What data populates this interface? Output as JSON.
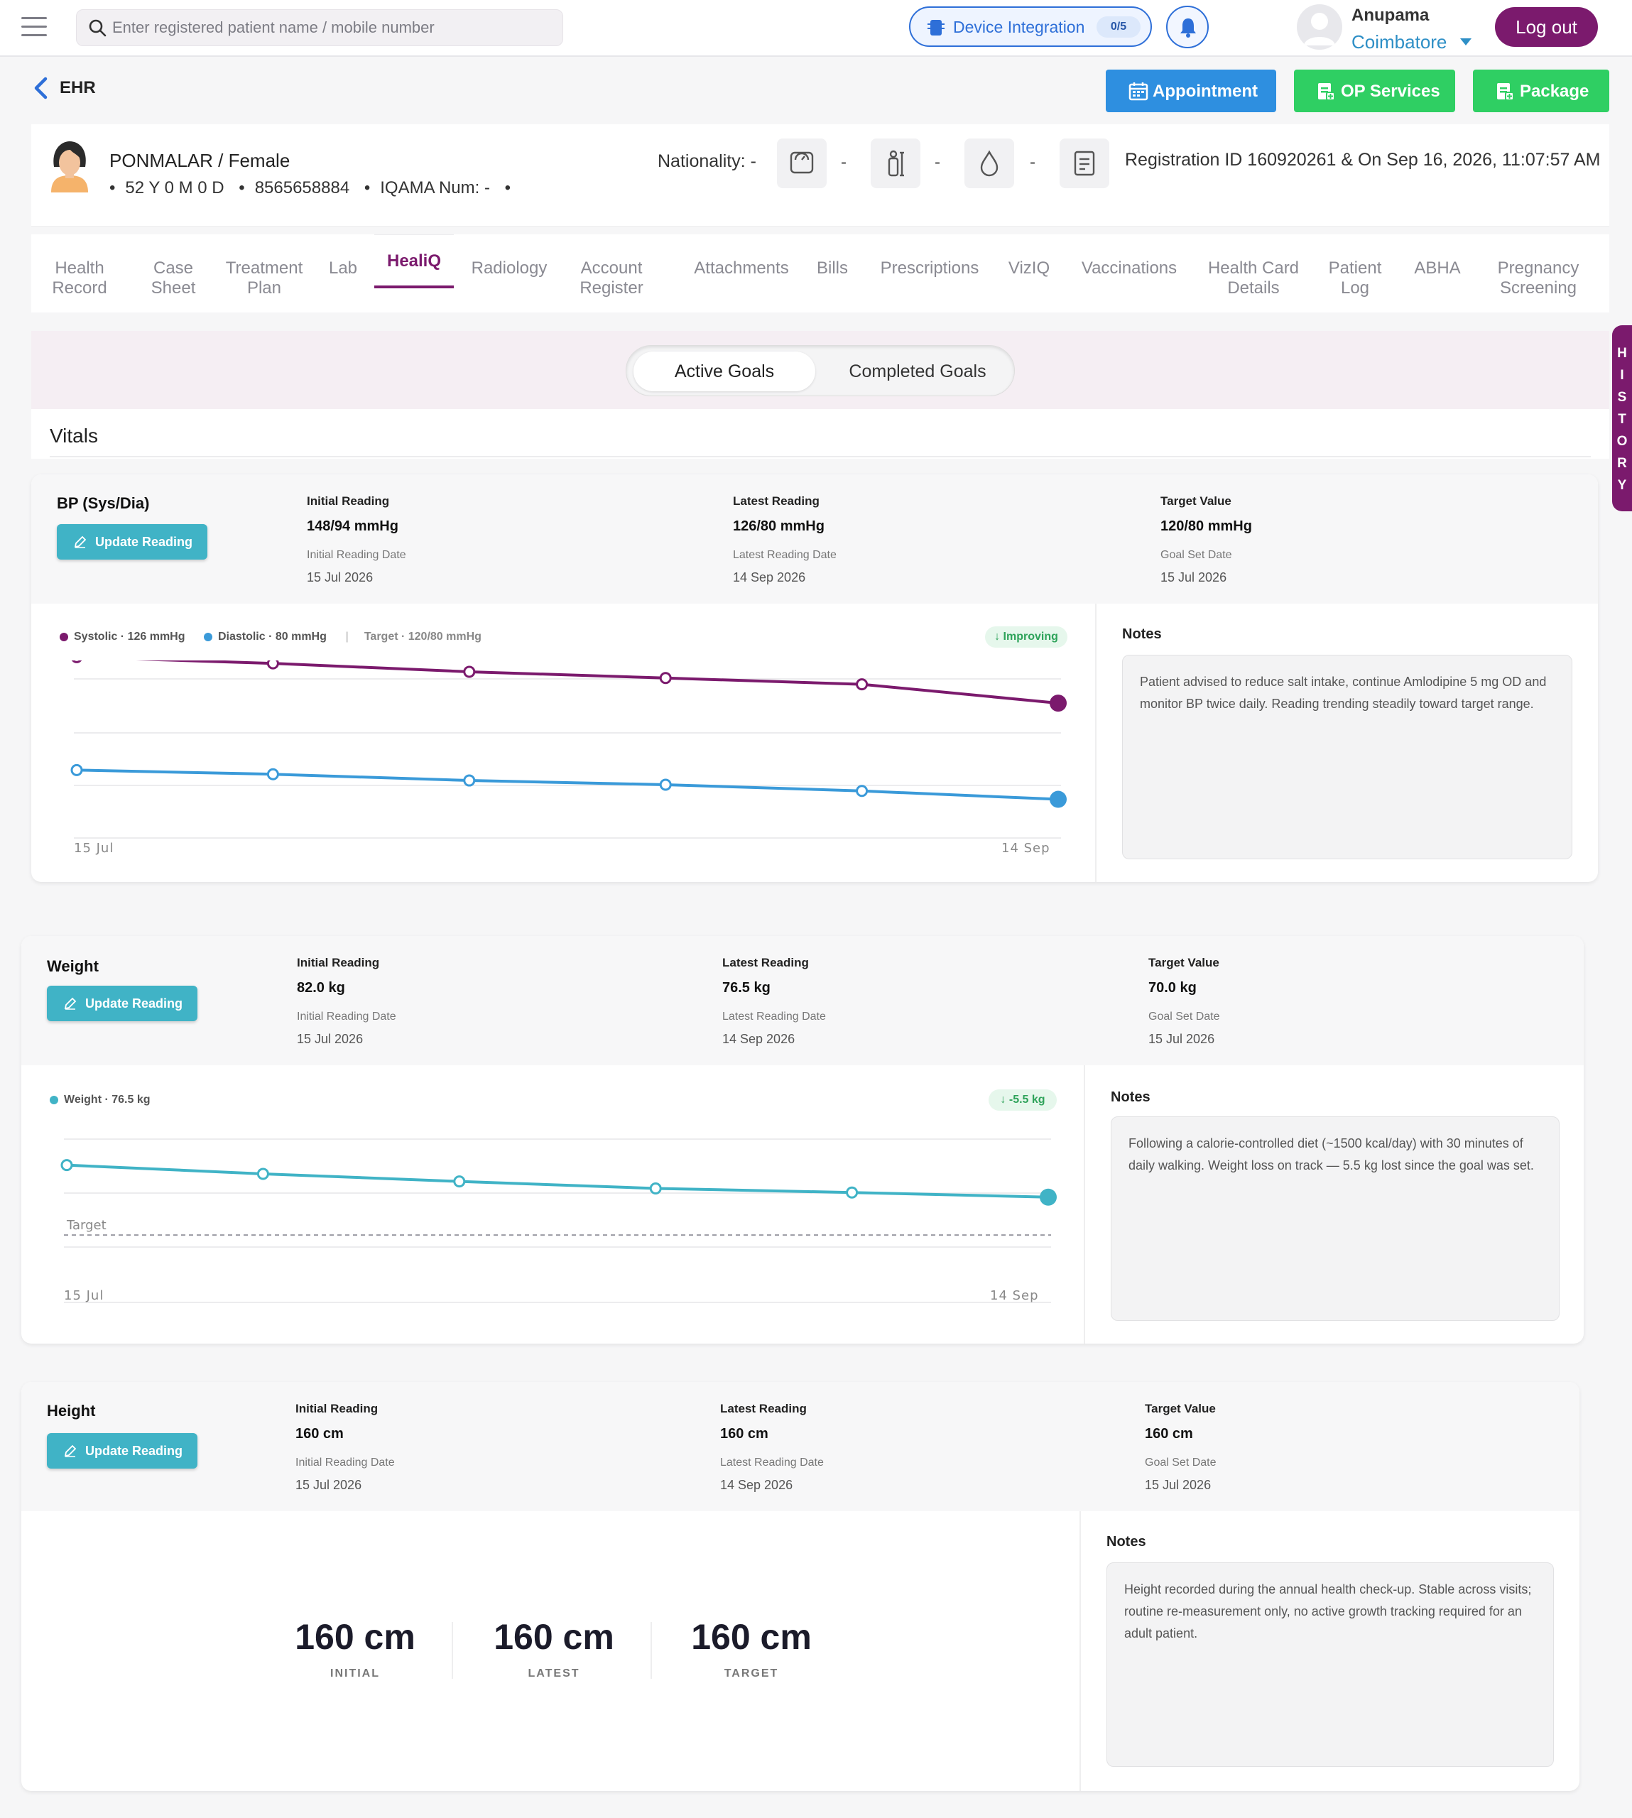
{
  "topbar": {
    "search_placeholder": "Enter registered patient name / mobile number",
    "device_integration": {
      "label": "Device Integration",
      "count": "0/5"
    },
    "user": {
      "name": "Anupama",
      "location": "Coimbatore"
    },
    "logout_label": "Log out"
  },
  "header": {
    "back_label": "EHR",
    "buttons": {
      "appointment": "Appointment",
      "op_services": "OP Services",
      "package": "Package"
    }
  },
  "patient": {
    "name_gender": "PONMALAR / Female",
    "age": "52 Y 0 M 0 D",
    "mobile": "8565658884",
    "iqama": "IQAMA Num: -",
    "nationality": "Nationality: -",
    "vital_dashes": [
      "-",
      "-",
      "-"
    ],
    "registration": "Registration ID 160920261 & On Sep 16, 2026, 11:07:57 AM"
  },
  "tabs": [
    {
      "line1": "Health",
      "line2": "Record"
    },
    {
      "line1": "Case",
      "line2": "Sheet"
    },
    {
      "line1": "Treatment",
      "line2": "Plan"
    },
    {
      "line1": "Lab",
      "line2": ""
    },
    {
      "line1": "HealiQ",
      "line2": ""
    },
    {
      "line1": "Radiology",
      "line2": ""
    },
    {
      "line1": "Account",
      "line2": "Register"
    },
    {
      "line1": "Attachments",
      "line2": ""
    },
    {
      "line1": "Bills",
      "line2": ""
    },
    {
      "line1": "Prescriptions",
      "line2": ""
    },
    {
      "line1": "VizIQ",
      "line2": ""
    },
    {
      "line1": "Vaccinations",
      "line2": ""
    },
    {
      "line1": "Health Card",
      "line2": "Details"
    },
    {
      "line1": "Patient",
      "line2": "Log"
    },
    {
      "line1": "ABHA",
      "line2": ""
    },
    {
      "line1": "Pregnancy",
      "line2": "Screening"
    }
  ],
  "goals_toggle": {
    "active": "Active Goals",
    "completed": "Completed Goals"
  },
  "section_title": "Vitals",
  "history_label": "HISTORY",
  "vitals": {
    "bp": {
      "title": "BP (Sys/Dia)",
      "update_label": "Update Reading",
      "initial": {
        "head": "Initial Reading",
        "value": "148/94 mmHg",
        "date_head": "Initial Reading Date",
        "date": "15 Jul 2026"
      },
      "latest": {
        "head": "Latest Reading",
        "value": "126/80 mmHg",
        "date_head": "Latest Reading Date",
        "date": "14 Sep 2026"
      },
      "target": {
        "head": "Target Value",
        "value": "120/80 mmHg",
        "date_head": "Goal Set Date",
        "date": "15 Jul 2026"
      },
      "legend": {
        "systolic": "Systolic · 126 mmHg",
        "diastolic": "Diastolic · 80 mmHg",
        "target": "Target · 120/80 mmHg"
      },
      "trend_pill": "↓ Improving",
      "x_start": "15 Jul",
      "x_end": "14 Sep",
      "notes_title": "Notes",
      "notes": "Patient advised to reduce salt intake, continue Amlodipine 5 mg OD and monitor BP twice daily. Reading trending steadily toward target range."
    },
    "weight": {
      "title": "Weight",
      "update_label": "Update Reading",
      "initial": {
        "head": "Initial Reading",
        "value": "82.0 kg",
        "date_head": "Initial Reading Date",
        "date": "15 Jul 2026"
      },
      "latest": {
        "head": "Latest Reading",
        "value": "76.5 kg",
        "date_head": "Latest Reading Date",
        "date": "14 Sep 2026"
      },
      "target": {
        "head": "Target Value",
        "value": "70.0 kg",
        "date_head": "Goal Set Date",
        "date": "15 Jul 2026"
      },
      "legend": "Weight · 76.5 kg",
      "trend_pill": "↓ -5.5 kg",
      "target_line_label": "Target",
      "x_start": "15 Jul",
      "x_end": "14 Sep",
      "notes_title": "Notes",
      "notes": "Following a calorie-controlled diet (~1500 kcal/day) with 30 minutes of daily walking. Weight loss on track — 5.5 kg lost since the goal was set."
    },
    "height": {
      "title": "Height",
      "update_label": "Update Reading",
      "initial": {
        "head": "Initial Reading",
        "value": "160 cm",
        "date_head": "Initial Reading Date",
        "date": "15 Jul 2026"
      },
      "latest": {
        "head": "Latest Reading",
        "value": "160 cm",
        "date_head": "Latest Reading Date",
        "date": "14 Sep 2026"
      },
      "target": {
        "head": "Target Value",
        "value": "160 cm",
        "date_head": "Goal Set Date",
        "date": "15 Jul 2026"
      },
      "summary": [
        {
          "value": "160 cm",
          "caption": "INITIAL"
        },
        {
          "value": "160 cm",
          "caption": "LATEST"
        },
        {
          "value": "160 cm",
          "caption": "TARGET"
        }
      ],
      "notes_title": "Notes",
      "notes": "Height recorded during the annual health check-up. Stable across visits; routine re-measurement only, no active growth tracking required for an adult patient."
    }
  },
  "colors": {
    "brand": "#7b1a6d",
    "systolic": "#7b1a6d",
    "diastolic": "#3a9ad9",
    "weight": "#40b3c6",
    "green": "#2fcf63",
    "blue": "#2e8fe0"
  },
  "chart_data": [
    {
      "type": "line",
      "title": "",
      "x": [
        "15 Jul",
        "",
        "",
        "",
        "",
        "14 Sep"
      ],
      "series": [
        {
          "name": "Systolic",
          "values": [
            148,
            145,
            141,
            138,
            135,
            126
          ]
        },
        {
          "name": "Diastolic",
          "values": [
            94,
            92,
            89,
            87,
            84,
            80
          ]
        }
      ],
      "ylim": [
        70,
        160
      ],
      "grid": true,
      "legend": "top-left"
    },
    {
      "type": "line",
      "title": "",
      "x": [
        "15 Jul",
        "",
        "",
        "",
        "",
        "14 Sep"
      ],
      "series": [
        {
          "name": "Weight",
          "values": [
            82.0,
            80.5,
            79.2,
            78.0,
            77.3,
            76.5
          ]
        }
      ],
      "target": 70.0,
      "ylim": [
        66,
        85
      ],
      "grid": true,
      "legend": "top-left"
    }
  ]
}
